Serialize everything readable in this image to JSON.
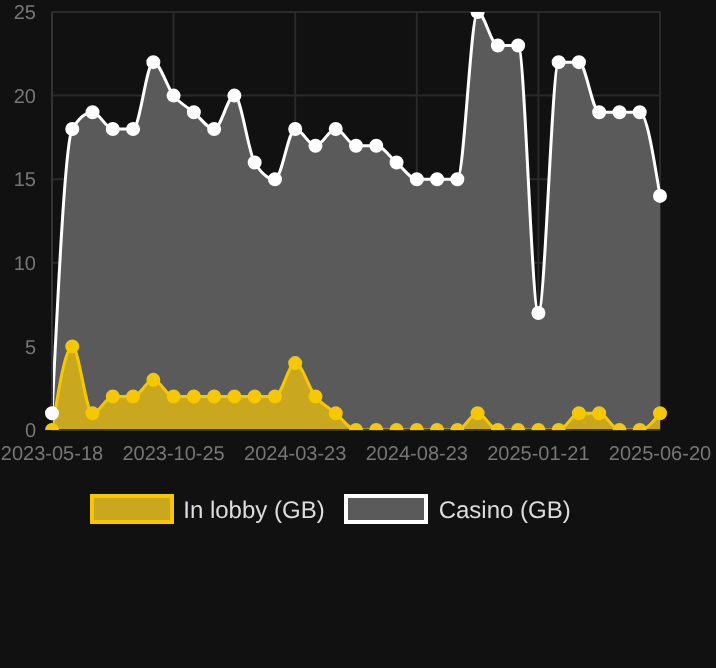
{
  "chart_data": {
    "type": "area",
    "categories": [
      "2023-05-18",
      null,
      null,
      null,
      null,
      null,
      "2023-10-25",
      null,
      null,
      null,
      null,
      null,
      "2024-03-23",
      null,
      null,
      null,
      null,
      null,
      "2024-08-23",
      null,
      null,
      null,
      null,
      null,
      "2025-01-21",
      null,
      null,
      null,
      null,
      null,
      "2025-06-20"
    ],
    "series": [
      {
        "name": "In lobby (GB)",
        "color": "#f5c800",
        "values": [
          0,
          5,
          1,
          2,
          2,
          3,
          2,
          2,
          2,
          2,
          2,
          2,
          4,
          2,
          1,
          0,
          0,
          0,
          0,
          0,
          0,
          1,
          0,
          0,
          0,
          0,
          1,
          1,
          0,
          0,
          1
        ]
      },
      {
        "name": "Casino (GB)",
        "color": "#ffffff",
        "values": [
          1,
          18,
          19,
          18,
          18,
          22,
          20,
          19,
          18,
          20,
          16,
          15,
          18,
          17,
          18,
          17,
          17,
          16,
          15,
          15,
          15,
          25,
          23,
          23,
          7,
          22,
          22,
          19,
          19,
          19,
          14
        ]
      }
    ],
    "ylim": [
      0,
      25
    ],
    "yticks": [
      0,
      5,
      10,
      15,
      20,
      25
    ],
    "grid": true,
    "legend": "bottom",
    "marker": "circle"
  }
}
